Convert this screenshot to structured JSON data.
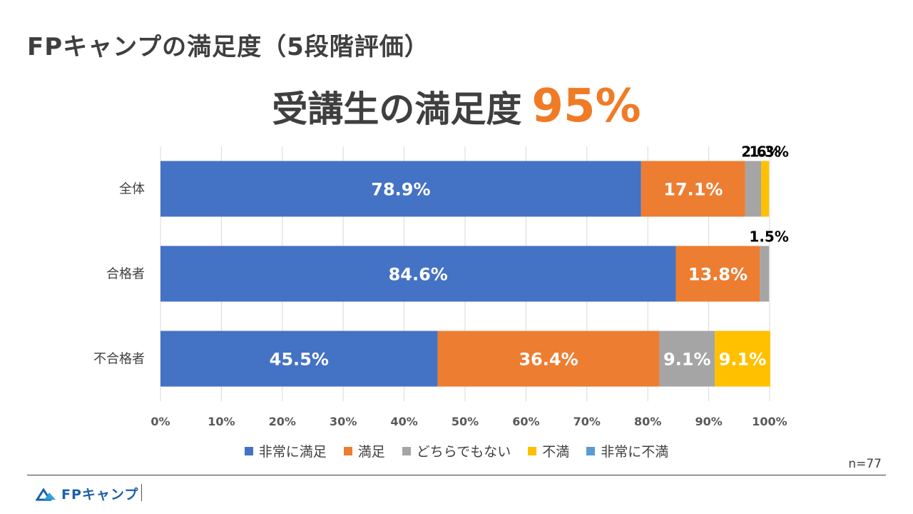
{
  "header": {
    "title": "FPキャンプの満足度（5段階評価）",
    "headline_text": "受講生の満足度",
    "headline_value": "95%"
  },
  "chart_data": {
    "type": "bar",
    "orientation": "horizontal",
    "stacked": true,
    "categories": [
      "全体",
      "合格者",
      "不合格者"
    ],
    "series": [
      {
        "name": "非常に満足",
        "color": "#4472c4",
        "values": [
          78.9,
          84.6,
          45.5
        ],
        "labels": [
          "78.9%",
          "84.6%",
          "45.5%"
        ]
      },
      {
        "name": "満足",
        "color": "#ed7d31",
        "values": [
          17.1,
          13.8,
          36.4
        ],
        "labels": [
          "17.1%",
          "13.8%",
          "36.4%"
        ]
      },
      {
        "name": "どちらでもない",
        "color": "#a5a5a5",
        "values": [
          2.6,
          1.5,
          9.1
        ],
        "labels": [
          "2.6%",
          "1.5%",
          "9.1%"
        ]
      },
      {
        "name": "不満",
        "color": "#ffc000",
        "values": [
          1.3,
          0,
          9.1
        ],
        "labels": [
          "1.3%",
          "",
          "9.1%"
        ]
      },
      {
        "name": "非常に不満",
        "color": "#5b9bd5",
        "values": [
          0,
          0,
          0
        ],
        "labels": [
          "",
          "",
          ""
        ]
      }
    ],
    "xlim": [
      0,
      100
    ],
    "xticks": [
      "0%",
      "10%",
      "20%",
      "30%",
      "40%",
      "50%",
      "60%",
      "70%",
      "80%",
      "90%",
      "100%"
    ],
    "grid": true,
    "legend": "bottom"
  },
  "footer": {
    "sample_size": "n=77",
    "logo_text": "FPキャンプ"
  }
}
